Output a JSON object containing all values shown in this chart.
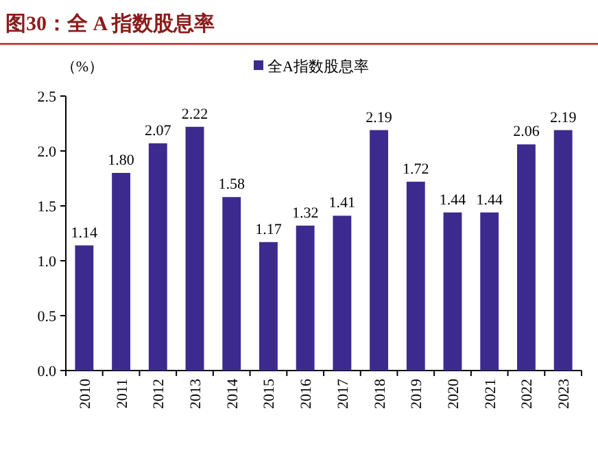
{
  "chart_data": {
    "type": "bar",
    "title": "图30：全 A 指数股息率",
    "ylabel": "（%）",
    "categories": [
      "2010",
      "2011",
      "2012",
      "2013",
      "2014",
      "2015",
      "2016",
      "2017",
      "2018",
      "2019",
      "2020",
      "2021",
      "2022",
      "2023"
    ],
    "series": [
      {
        "name": "全A指数股息率",
        "color": "#3d2a8e",
        "values": [
          1.14,
          1.8,
          2.07,
          2.22,
          1.58,
          1.17,
          1.32,
          1.41,
          2.19,
          1.72,
          1.44,
          1.44,
          2.06,
          2.19
        ],
        "value_labels": [
          "1.14",
          "1.80",
          "2.07",
          "2.22",
          "1.58",
          "1.17",
          "1.32",
          "1.41",
          "2.19",
          "1.72",
          "1.44",
          "1.44",
          "2.06",
          "2.19"
        ]
      }
    ],
    "ylim": [
      0,
      2.5
    ],
    "yticks": [
      {
        "value": 0,
        "label": "0.0"
      },
      0.5,
      {
        "value": 1,
        "label": "1.0"
      },
      1.5,
      {
        "value": 2,
        "label": "2.0"
      },
      2.5
    ],
    "legend": "top",
    "grid": false
  }
}
